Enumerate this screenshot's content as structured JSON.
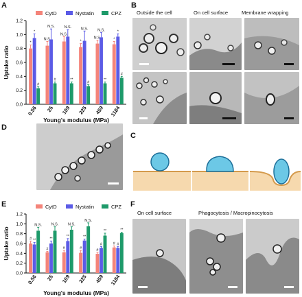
{
  "panels": {
    "A": "A",
    "B": "B",
    "C": "C",
    "D": "D",
    "E": "E",
    "F": "F"
  },
  "panel_b": {
    "captions": [
      "Outside the cell",
      "On cell surface",
      "Membrane wrapping"
    ]
  },
  "panel_f": {
    "captions": [
      "On cell surface",
      "Phagocytosis / Macropinocytosis"
    ]
  },
  "colors": {
    "CytD": "#f4847a",
    "Nystatin": "#5b5be6",
    "CPZ": "#1e9a6a",
    "cell": "#f0c48a",
    "particle": "#6cc8e6"
  },
  "chart_data": [
    {
      "type": "bar",
      "panel": "A",
      "title": "",
      "xlabel": "Young's modulus (MPa)",
      "ylabel": "Uptake ratio",
      "ylim": [
        0,
        1.2
      ],
      "yticks": [
        "0.0",
        "0.2",
        "0.4",
        "0.6",
        "0.8",
        "1.0",
        "1.2"
      ],
      "categories": [
        "0.56",
        "25",
        "109",
        "225",
        "459",
        "1184"
      ],
      "legend_position": "top",
      "series": [
        {
          "name": "CytD",
          "values": [
            0.8,
            0.84,
            0.9,
            0.82,
            0.87,
            0.86
          ],
          "errors": [
            0.05,
            0.06,
            0.07,
            0.05,
            0.05,
            0.04
          ],
          "sig": [
            "*",
            "N.S.",
            "N.S.",
            "*",
            "N.S.",
            "*"
          ]
        },
        {
          "name": "Nystatin",
          "values": [
            0.95,
            0.93,
            0.97,
            0.91,
            0.96,
            0.97
          ],
          "errors": [
            0.06,
            0.15,
            0.1,
            0.14,
            0.07,
            0.04
          ],
          "sig": [
            "*",
            "N.S.",
            "N.S.",
            "N.S.",
            "N.S.",
            "*"
          ]
        },
        {
          "name": "CPZ",
          "values": [
            0.23,
            0.3,
            0.3,
            0.26,
            0.3,
            0.38
          ],
          "errors": [
            0.02,
            0.02,
            0.02,
            0.02,
            0.02,
            0.02
          ],
          "sig": [
            "#",
            "#",
            "**",
            "#",
            "**",
            "#"
          ]
        }
      ]
    },
    {
      "type": "bar",
      "panel": "E",
      "title": "",
      "xlabel": "Young's modulus (MPa)",
      "ylabel": "Uptake ratio",
      "ylim": [
        0,
        1.2
      ],
      "yticks": [
        "0.0",
        "0.2",
        "0.4",
        "0.6",
        "0.8",
        "1.0",
        "1.2"
      ],
      "categories": [
        "0.56",
        "25",
        "109",
        "225",
        "459",
        "1184"
      ],
      "legend_position": "top",
      "series": [
        {
          "name": "CytD",
          "values": [
            0.6,
            0.42,
            0.42,
            0.41,
            0.39,
            0.52
          ],
          "errors": [
            0.05,
            0.02,
            0.04,
            0.05,
            0.03,
            0.03
          ],
          "sig": [
            "#",
            "#",
            "#",
            "#",
            "#",
            "#"
          ]
        },
        {
          "name": "Nystatin",
          "values": [
            0.58,
            0.6,
            0.65,
            0.66,
            0.51,
            0.51
          ],
          "errors": [
            0.04,
            0.05,
            0.05,
            0.03,
            0.03,
            0.03
          ],
          "sig": [
            "**",
            "**",
            "**",
            "**",
            "#",
            "#"
          ]
        },
        {
          "name": "CPZ",
          "values": [
            0.86,
            0.86,
            0.88,
            0.95,
            0.76,
            0.81
          ],
          "errors": [
            0.07,
            0.08,
            0.06,
            0.07,
            0.05,
            0.02
          ],
          "sig": [
            "N.S.",
            "N.S.",
            "N.S.",
            "N.S.",
            "**",
            "**"
          ]
        }
      ]
    }
  ]
}
